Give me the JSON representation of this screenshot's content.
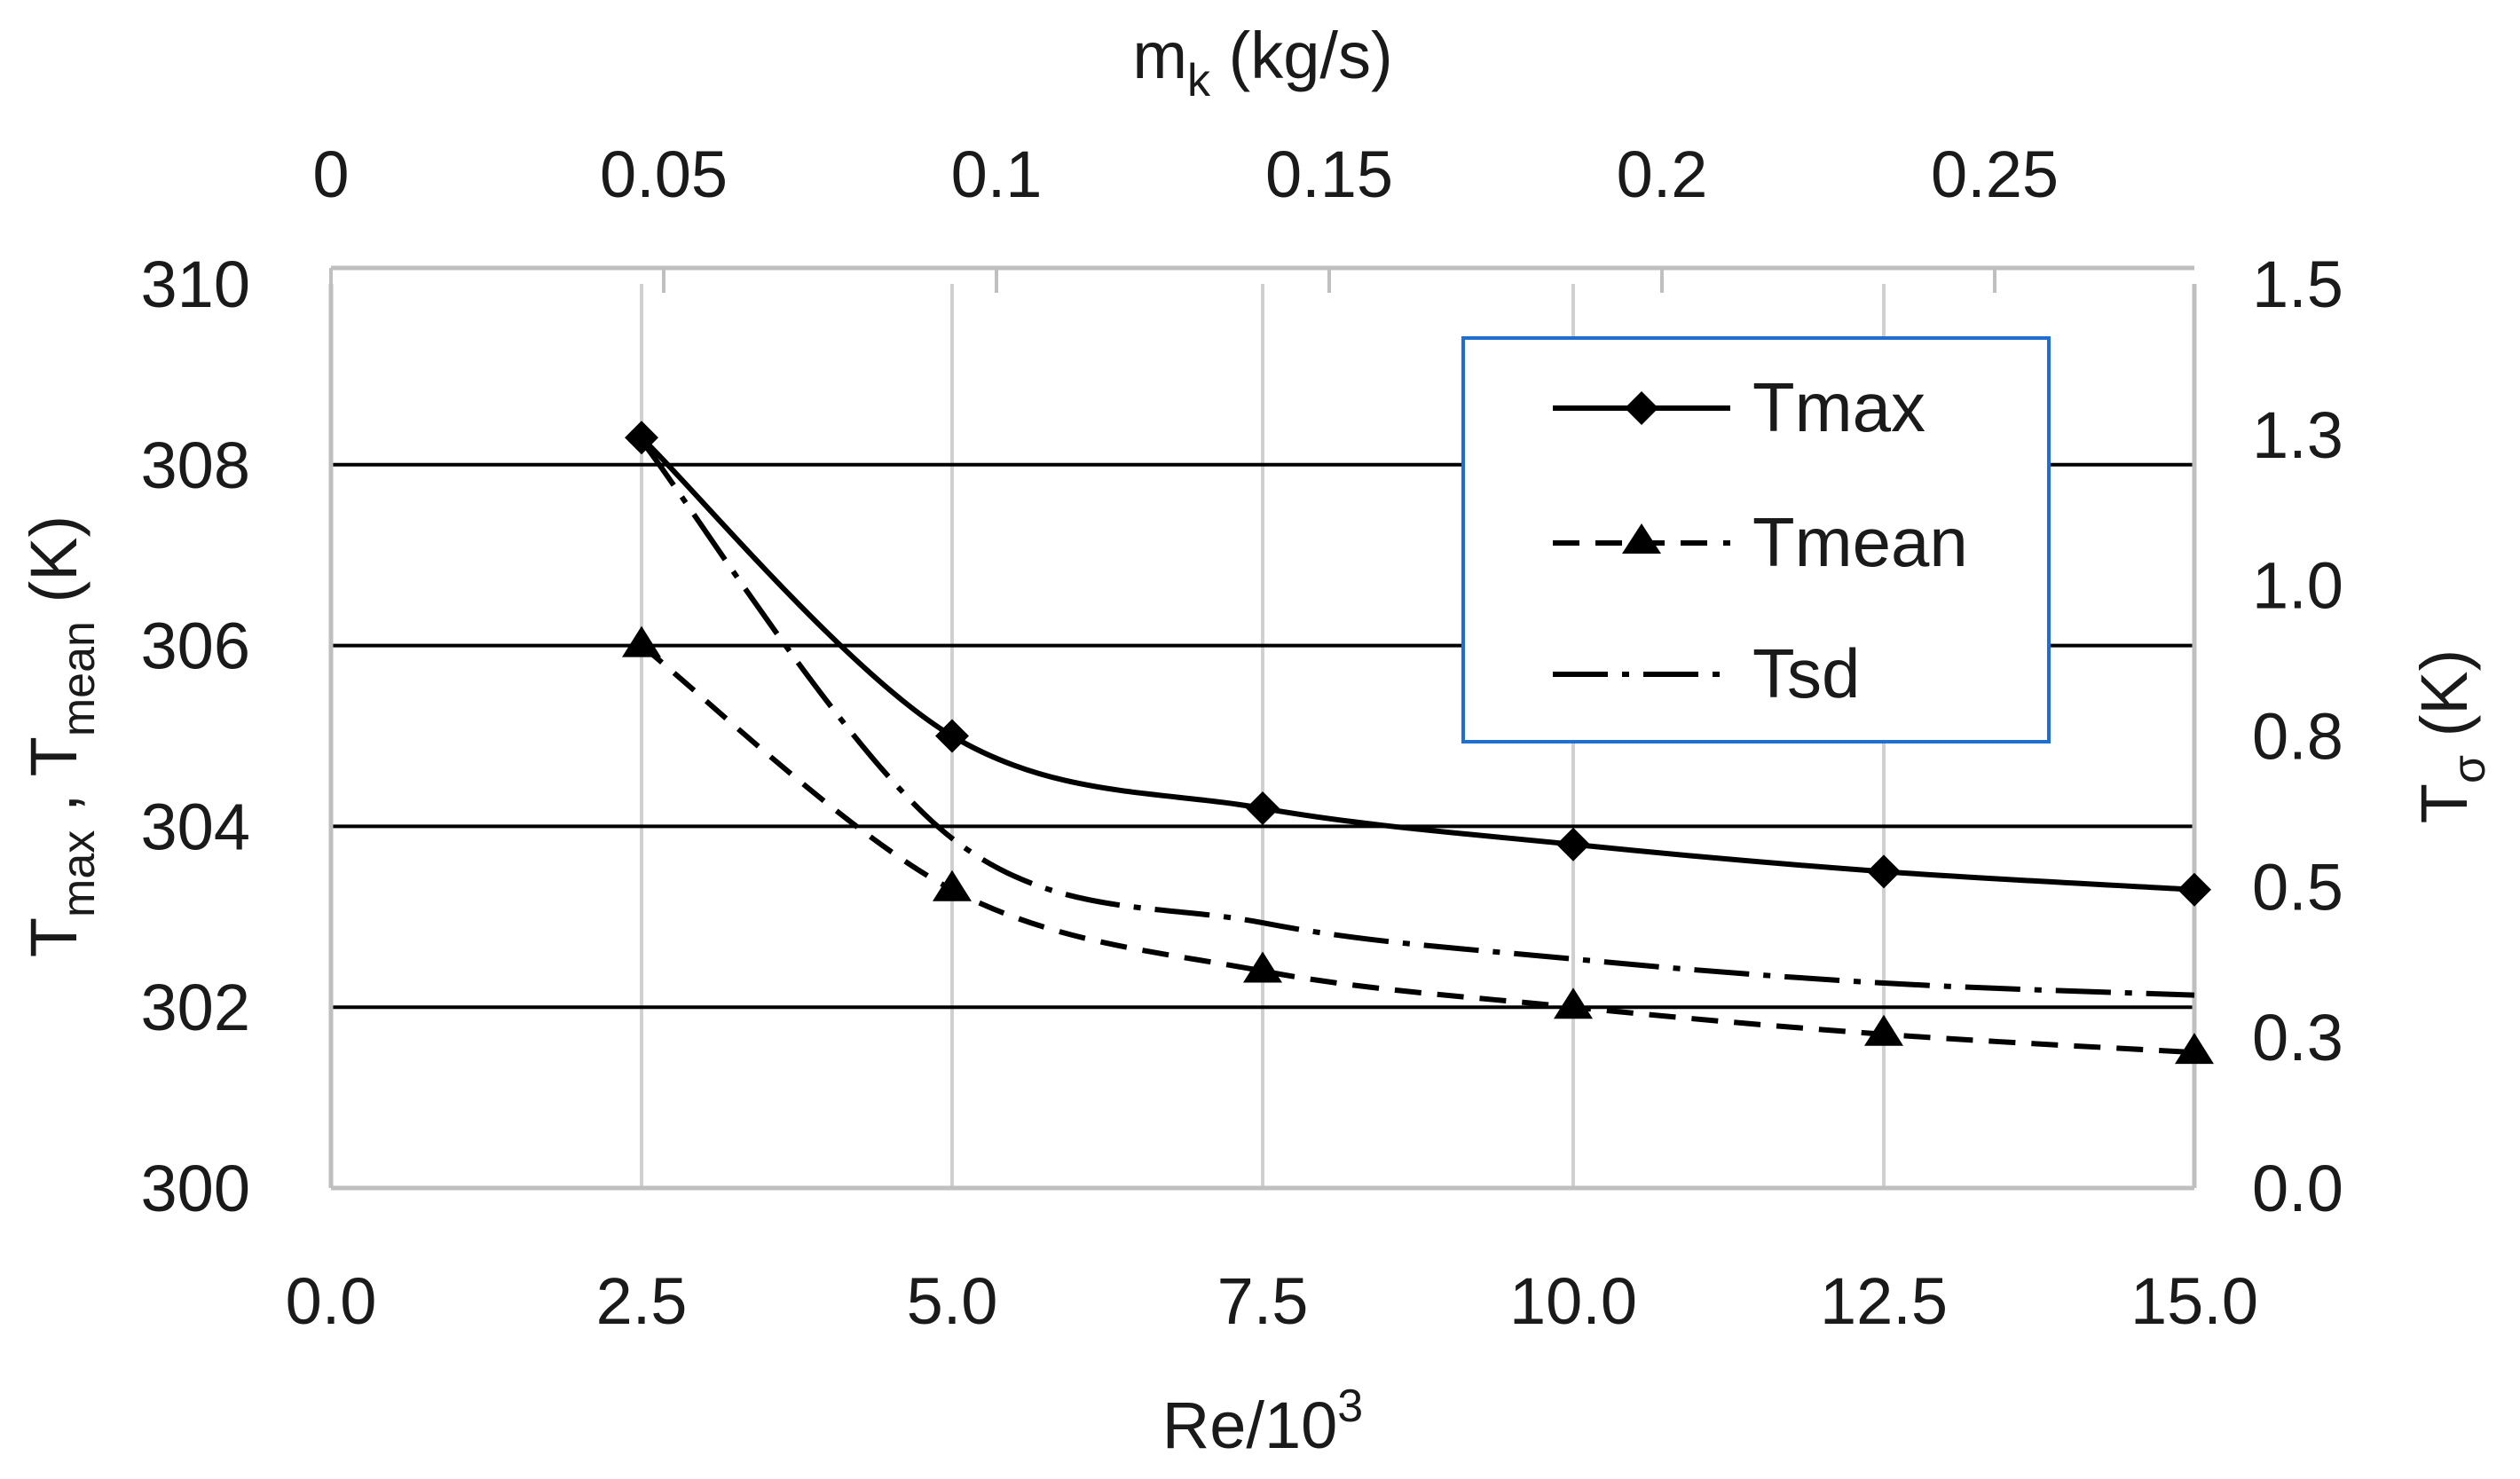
{
  "chart_data": {
    "type": "line",
    "title": "",
    "x": [
      2.5,
      5.0,
      7.5,
      10.0,
      12.5,
      15.0
    ],
    "xlim": [
      0,
      15
    ],
    "x_ticks": [
      "0.0",
      "2.5",
      "5.0",
      "7.5",
      "10.0",
      "12.5",
      "15.0"
    ],
    "xlabel_main": "Re/10",
    "xlabel_sup": "3",
    "x2_ticks": [
      "0",
      "0.05",
      "0.1",
      "0.15",
      "0.2",
      "0.25"
    ],
    "x2lim": [
      0,
      0.28
    ],
    "x2label_main": "m",
    "x2label_sub": "k",
    "x2label_unit": " (kg/s)",
    "y_ticks": [
      "300",
      "302",
      "304",
      "306",
      "308",
      "310"
    ],
    "ylim": [
      300,
      310
    ],
    "ylabel": {
      "t1": "T",
      "sub1": "max",
      "sep": " , ",
      "t2": "T",
      "sub2": "mean",
      "unit": " (K)"
    },
    "y2_ticks": [
      "0.0",
      "0.3",
      "0.5",
      "0.8",
      "1.0",
      "1.3",
      "1.5"
    ],
    "y2lim": [
      0,
      1.5
    ],
    "y2label": {
      "t": "T",
      "sub": "σ",
      "unit": " (K)"
    },
    "series": [
      {
        "name": "Tmax",
        "axis": "left",
        "marker": "diamond",
        "line": "solid",
        "values": [
          308.3,
          305.0,
          304.2,
          303.8,
          303.5,
          303.3
        ]
      },
      {
        "name": "Tmean",
        "axis": "left",
        "marker": "triangle",
        "line": "dashed",
        "values": [
          306.0,
          303.3,
          302.4,
          302.0,
          301.7,
          301.5
        ]
      },
      {
        "name": "Tsd",
        "axis": "right",
        "marker": "none",
        "line": "dashdot",
        "values": [
          1.24,
          0.58,
          0.44,
          0.38,
          0.34,
          0.32
        ]
      }
    ],
    "legend_position": "top-right",
    "gridlines": "horizontal major and vertical at x ticks"
  }
}
